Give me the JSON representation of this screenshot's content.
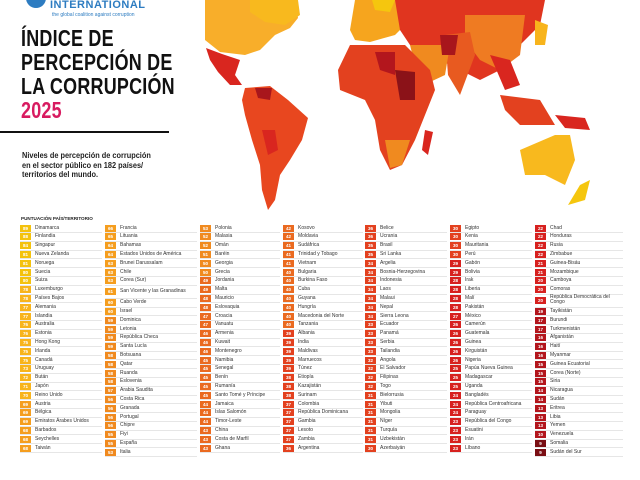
{
  "logo": {
    "word": "INTERNATIONAL",
    "tagline": "the global coalition against corruption"
  },
  "header": {
    "title_lines": [
      "ÍNDICE DE",
      "PERCEPCIÓN DE",
      "LA CORRUPCIÓN"
    ],
    "year": "2025",
    "subtitle": "Niveles de percepción de corrupción en el sector público en 182 países/ territorios del mundo."
  },
  "colors": {
    "accent": "#d81b60",
    "logo_blue": "#2d7cc1",
    "scale": {
      "80-100": "#f4c20d",
      "70-79": "#f8b41c",
      "60-69": "#f59e1f",
      "50-59": "#f08a1f",
      "40-49": "#ea6a20",
      "30-39": "#e3411f",
      "20-29": "#d7211f",
      "10-19": "#b3161d",
      "0-9": "#7a0f14"
    }
  },
  "chart_data": {
    "type": "table",
    "title": "ÍNDICE DE PERCEPCIÓN DE LA CORRUPCIÓN 2025",
    "column_header": "PUNTUACIÓN PAÍS/TERRITORIO",
    "columns": [
      [
        [
          "89",
          "Dinamarca"
        ],
        [
          "88",
          "Finlandia"
        ],
        [
          "84",
          "Singapur"
        ],
        [
          "81",
          "Nueva Zelanda"
        ],
        [
          "81",
          "Noruega"
        ],
        [
          "80",
          "Suecia"
        ],
        [
          "80",
          "Suiza"
        ],
        [
          "78",
          "Luxemburgo"
        ],
        [
          "78",
          "Países Bajos"
        ],
        [
          "77",
          "Alemania"
        ],
        [
          "77",
          "Islandia"
        ],
        [
          "76",
          "Australia"
        ],
        [
          "76",
          "Estonia"
        ],
        [
          "75",
          "Hong Kong"
        ],
        [
          "75",
          "Irlanda"
        ],
        [
          "75",
          "Canadá"
        ],
        [
          "73",
          "Uruguay"
        ],
        [
          "72",
          "Bután"
        ],
        [
          "71",
          "Japón"
        ],
        [
          "70",
          "Reino Unido"
        ],
        [
          "69",
          "Austria"
        ],
        [
          "69",
          "Bélgica"
        ],
        [
          "69",
          "Emiratos Árabes Unidos"
        ],
        [
          "68",
          "Barbados"
        ],
        [
          "68",
          "Seychelles"
        ],
        [
          "68",
          "Taiwán"
        ]
      ],
      [
        [
          "66",
          "Francia"
        ],
        [
          "65",
          "Lituania"
        ],
        [
          "64",
          "Bahamas"
        ],
        [
          "64",
          "Estados Unidos de América"
        ],
        [
          "63",
          "Brunei Darussalam"
        ],
        [
          "63",
          "Chile"
        ],
        [
          "63",
          "Corea (Sur)"
        ],
        [
          "61",
          "San Vicente y las Granadinas"
        ],
        [
          "60",
          "Cabo Verde"
        ],
        [
          "60",
          "Israel"
        ],
        [
          "59",
          "Dominica"
        ],
        [
          "59",
          "Letonia"
        ],
        [
          "59",
          "República Checa"
        ],
        [
          "59",
          "Santa Lucía"
        ],
        [
          "58",
          "Botsuana"
        ],
        [
          "58",
          "Qatar"
        ],
        [
          "58",
          "Ruanda"
        ],
        [
          "58",
          "Eslovenia"
        ],
        [
          "57",
          "Arabia Saudita"
        ],
        [
          "56",
          "Costa Rica"
        ],
        [
          "56",
          "Granada"
        ],
        [
          "56",
          "Portugal"
        ],
        [
          "56",
          "Chipre"
        ],
        [
          "55",
          "Fiyi"
        ],
        [
          "55",
          "España"
        ],
        [
          "53",
          "Italia"
        ]
      ],
      [
        [
          "53",
          "Polonia"
        ],
        [
          "52",
          "Malasia"
        ],
        [
          "52",
          "Omán"
        ],
        [
          "51",
          "Baréin"
        ],
        [
          "50",
          "Georgia"
        ],
        [
          "50",
          "Grecia"
        ],
        [
          "49",
          "Jordania"
        ],
        [
          "49",
          "Malta"
        ],
        [
          "48",
          "Mauricio"
        ],
        [
          "48",
          "Eslovaquia"
        ],
        [
          "47",
          "Croacia"
        ],
        [
          "47",
          "Vanuatu"
        ],
        [
          "46",
          "Armenia"
        ],
        [
          "46",
          "Kuwait"
        ],
        [
          "46",
          "Montenegro"
        ],
        [
          "45",
          "Namibia"
        ],
        [
          "45",
          "Senegal"
        ],
        [
          "45",
          "Benín"
        ],
        [
          "45",
          "Rumanía"
        ],
        [
          "45",
          "Santo Tomé y Príncipe"
        ],
        [
          "44",
          "Jamaica"
        ],
        [
          "44",
          "Islas Salomón"
        ],
        [
          "44",
          "Timor-Leste"
        ],
        [
          "43",
          "China"
        ],
        [
          "43",
          "Costa de Marfil"
        ],
        [
          "43",
          "Ghana"
        ]
      ],
      [
        [
          "42",
          "Kosovo"
        ],
        [
          "42",
          "Moldavia"
        ],
        [
          "41",
          "Sudáfrica"
        ],
        [
          "41",
          "Trinidad y Tobago"
        ],
        [
          "41",
          "Vietnam"
        ],
        [
          "40",
          "Bulgaria"
        ],
        [
          "40",
          "Burkina Faso"
        ],
        [
          "40",
          "Cuba"
        ],
        [
          "40",
          "Guyana"
        ],
        [
          "40",
          "Hungría"
        ],
        [
          "40",
          "Macedonia del Norte"
        ],
        [
          "40",
          "Tanzania"
        ],
        [
          "39",
          "Albania"
        ],
        [
          "39",
          "India"
        ],
        [
          "39",
          "Maldivas"
        ],
        [
          "39",
          "Marruecos"
        ],
        [
          "39",
          "Túnez"
        ],
        [
          "38",
          "Etiopía"
        ],
        [
          "38",
          "Kazajistán"
        ],
        [
          "38",
          "Surinam"
        ],
        [
          "37",
          "Colombia"
        ],
        [
          "37",
          "República Dominicana"
        ],
        [
          "37",
          "Gambia"
        ],
        [
          "37",
          "Lesoto"
        ],
        [
          "37",
          "Zambia"
        ],
        [
          "36",
          "Argentina"
        ]
      ],
      [
        [
          "36",
          "Belice"
        ],
        [
          "36",
          "Ucrania"
        ],
        [
          "35",
          "Brasil"
        ],
        [
          "35",
          "Sri Lanka"
        ],
        [
          "34",
          "Argelia"
        ],
        [
          "34",
          "Bosnia-Herzegovina"
        ],
        [
          "34",
          "Indonesia"
        ],
        [
          "34",
          "Laos"
        ],
        [
          "34",
          "Malaui"
        ],
        [
          "34",
          "Nepal"
        ],
        [
          "34",
          "Sierra Leona"
        ],
        [
          "33",
          "Ecuador"
        ],
        [
          "33",
          "Panamá"
        ],
        [
          "33",
          "Serbia"
        ],
        [
          "33",
          "Tailandia"
        ],
        [
          "32",
          "Angola"
        ],
        [
          "32",
          "El Salvador"
        ],
        [
          "32",
          "Filipinas"
        ],
        [
          "32",
          "Togo"
        ],
        [
          "31",
          "Bielorrusia"
        ],
        [
          "31",
          "Yibuti"
        ],
        [
          "31",
          "Mongolia"
        ],
        [
          "31",
          "Níger"
        ],
        [
          "31",
          "Turquía"
        ],
        [
          "31",
          "Uzbekistán"
        ],
        [
          "30",
          "Azerbaiyán"
        ]
      ],
      [
        [
          "30",
          "Egipto"
        ],
        [
          "30",
          "Kenia"
        ],
        [
          "30",
          "Mauritania"
        ],
        [
          "30",
          "Perú"
        ],
        [
          "29",
          "Gabón"
        ],
        [
          "29",
          "Bolivia"
        ],
        [
          "28",
          "Irak"
        ],
        [
          "28",
          "Liberia"
        ],
        [
          "28",
          "Malí"
        ],
        [
          "28",
          "Pakistán"
        ],
        [
          "27",
          "México"
        ],
        [
          "26",
          "Camerún"
        ],
        [
          "26",
          "Guatemala"
        ],
        [
          "26",
          "Guinea"
        ],
        [
          "26",
          "Kirguistán"
        ],
        [
          "26",
          "Nigeria"
        ],
        [
          "25",
          "Papúa Nueva Guinea"
        ],
        [
          "25",
          "Madagascar"
        ],
        [
          "25",
          "Uganda"
        ],
        [
          "24",
          "Bangladés"
        ],
        [
          "24",
          "República Centroafricana"
        ],
        [
          "24",
          "Paraguay"
        ],
        [
          "23",
          "República del Congo"
        ],
        [
          "23",
          "Esuatini"
        ],
        [
          "23",
          "Irán"
        ],
        [
          "23",
          "Líbano"
        ]
      ],
      [
        [
          "22",
          "Chad"
        ],
        [
          "22",
          "Honduras"
        ],
        [
          "22",
          "Rusia"
        ],
        [
          "22",
          "Zimbabue"
        ],
        [
          "21",
          "Guinea-Bisáu"
        ],
        [
          "21",
          "Mozambique"
        ],
        [
          "20",
          "Camboya"
        ],
        [
          "20",
          "Comoras"
        ],
        [
          "20",
          "República Democrática del Congo"
        ],
        [
          "19",
          "Tayikistán"
        ],
        [
          "17",
          "Burundi"
        ],
        [
          "17",
          "Turkmenistán"
        ],
        [
          "16",
          "Afganistán"
        ],
        [
          "16",
          "Haití"
        ],
        [
          "16",
          "Myanmar"
        ],
        [
          "15",
          "Guinea Ecuatorial"
        ],
        [
          "15",
          "Corea (Norte)"
        ],
        [
          "15",
          "Siria"
        ],
        [
          "14",
          "Nicaragua"
        ],
        [
          "14",
          "Sudán"
        ],
        [
          "13",
          "Eritrea"
        ],
        [
          "13",
          "Libia"
        ],
        [
          "13",
          "Yemen"
        ],
        [
          "10",
          "Venezuela"
        ],
        [
          "9",
          "Somalia"
        ],
        [
          "9",
          "Sudán del Sur"
        ]
      ]
    ]
  }
}
